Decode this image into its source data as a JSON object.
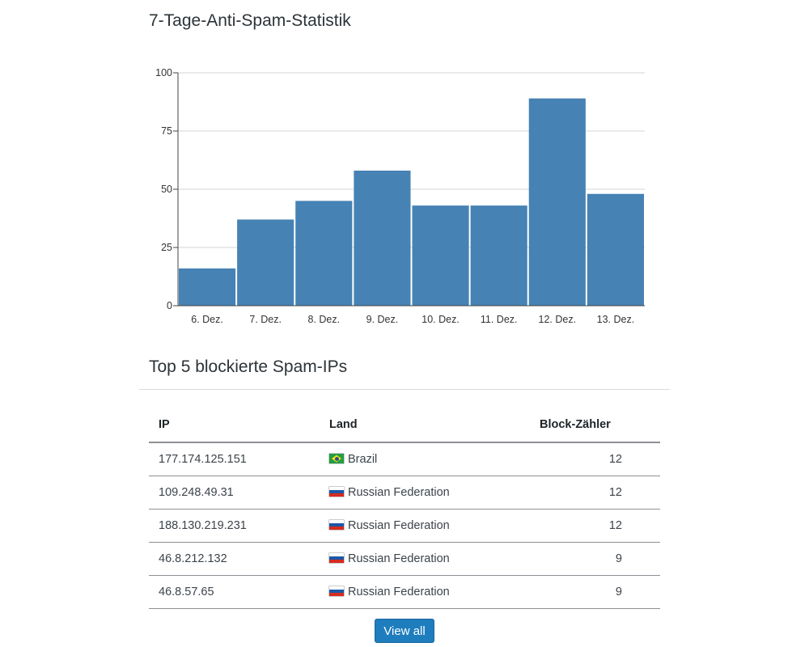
{
  "chart_data": {
    "type": "bar",
    "title": "7-Tage-Anti-Spam-Statistik",
    "categories": [
      "6. Dez.",
      "7. Dez.",
      "8. Dez.",
      "9. Dez.",
      "10. Dez.",
      "11. Dez.",
      "12. Dez.",
      "13. Dez."
    ],
    "values": [
      16,
      37,
      45,
      58,
      43,
      43,
      89,
      48
    ],
    "ylim": [
      0,
      100
    ],
    "yticks": [
      0,
      25,
      50,
      75,
      100
    ],
    "grid": true,
    "bar_color": "#4682b4"
  },
  "top_ips": {
    "title": "Top 5 blockierte Spam-IPs",
    "headers": {
      "ip": "IP",
      "land": "Land",
      "count": "Block-Zähler"
    },
    "rows": [
      {
        "ip": "177.174.125.151",
        "country": "Brazil",
        "flag": "br",
        "count": "12"
      },
      {
        "ip": "109.248.49.31",
        "country": "Russian Federation",
        "flag": "ru",
        "count": "12"
      },
      {
        "ip": "188.130.219.231",
        "country": "Russian Federation",
        "flag": "ru",
        "count": "12"
      },
      {
        "ip": "46.8.212.132",
        "country": "Russian Federation",
        "flag": "ru",
        "count": "9"
      },
      {
        "ip": "46.8.57.65",
        "country": "Russian Federation",
        "flag": "ru",
        "count": "9"
      }
    ],
    "view_all_label": "View all"
  },
  "accent_color": "#1e7dbd"
}
